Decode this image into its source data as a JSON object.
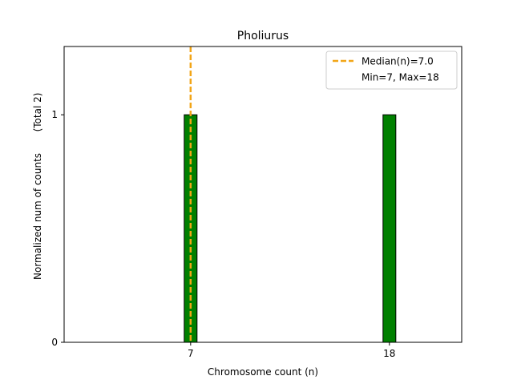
{
  "chart_data": {
    "type": "bar",
    "title": "Pholiurus",
    "xlabel": "Chromosome count (n)",
    "ylabel": "Normalized num of counts",
    "ylabel_note": "(Total 2)",
    "x": [
      7,
      18
    ],
    "values": [
      1,
      1
    ],
    "xlim": [
      0,
      22
    ],
    "ylim": [
      0,
      1.3
    ],
    "xticks": [
      "7",
      "18"
    ],
    "yticks": [
      "0",
      "1"
    ],
    "bar_color": "#008000",
    "median": {
      "value": 7.0,
      "color": "#f2a516",
      "style": "dashed"
    },
    "legend": {
      "placement": "top-right",
      "entries": [
        "Median(n)=7.0",
        "Min=7, Max=18"
      ]
    },
    "grid": false
  }
}
